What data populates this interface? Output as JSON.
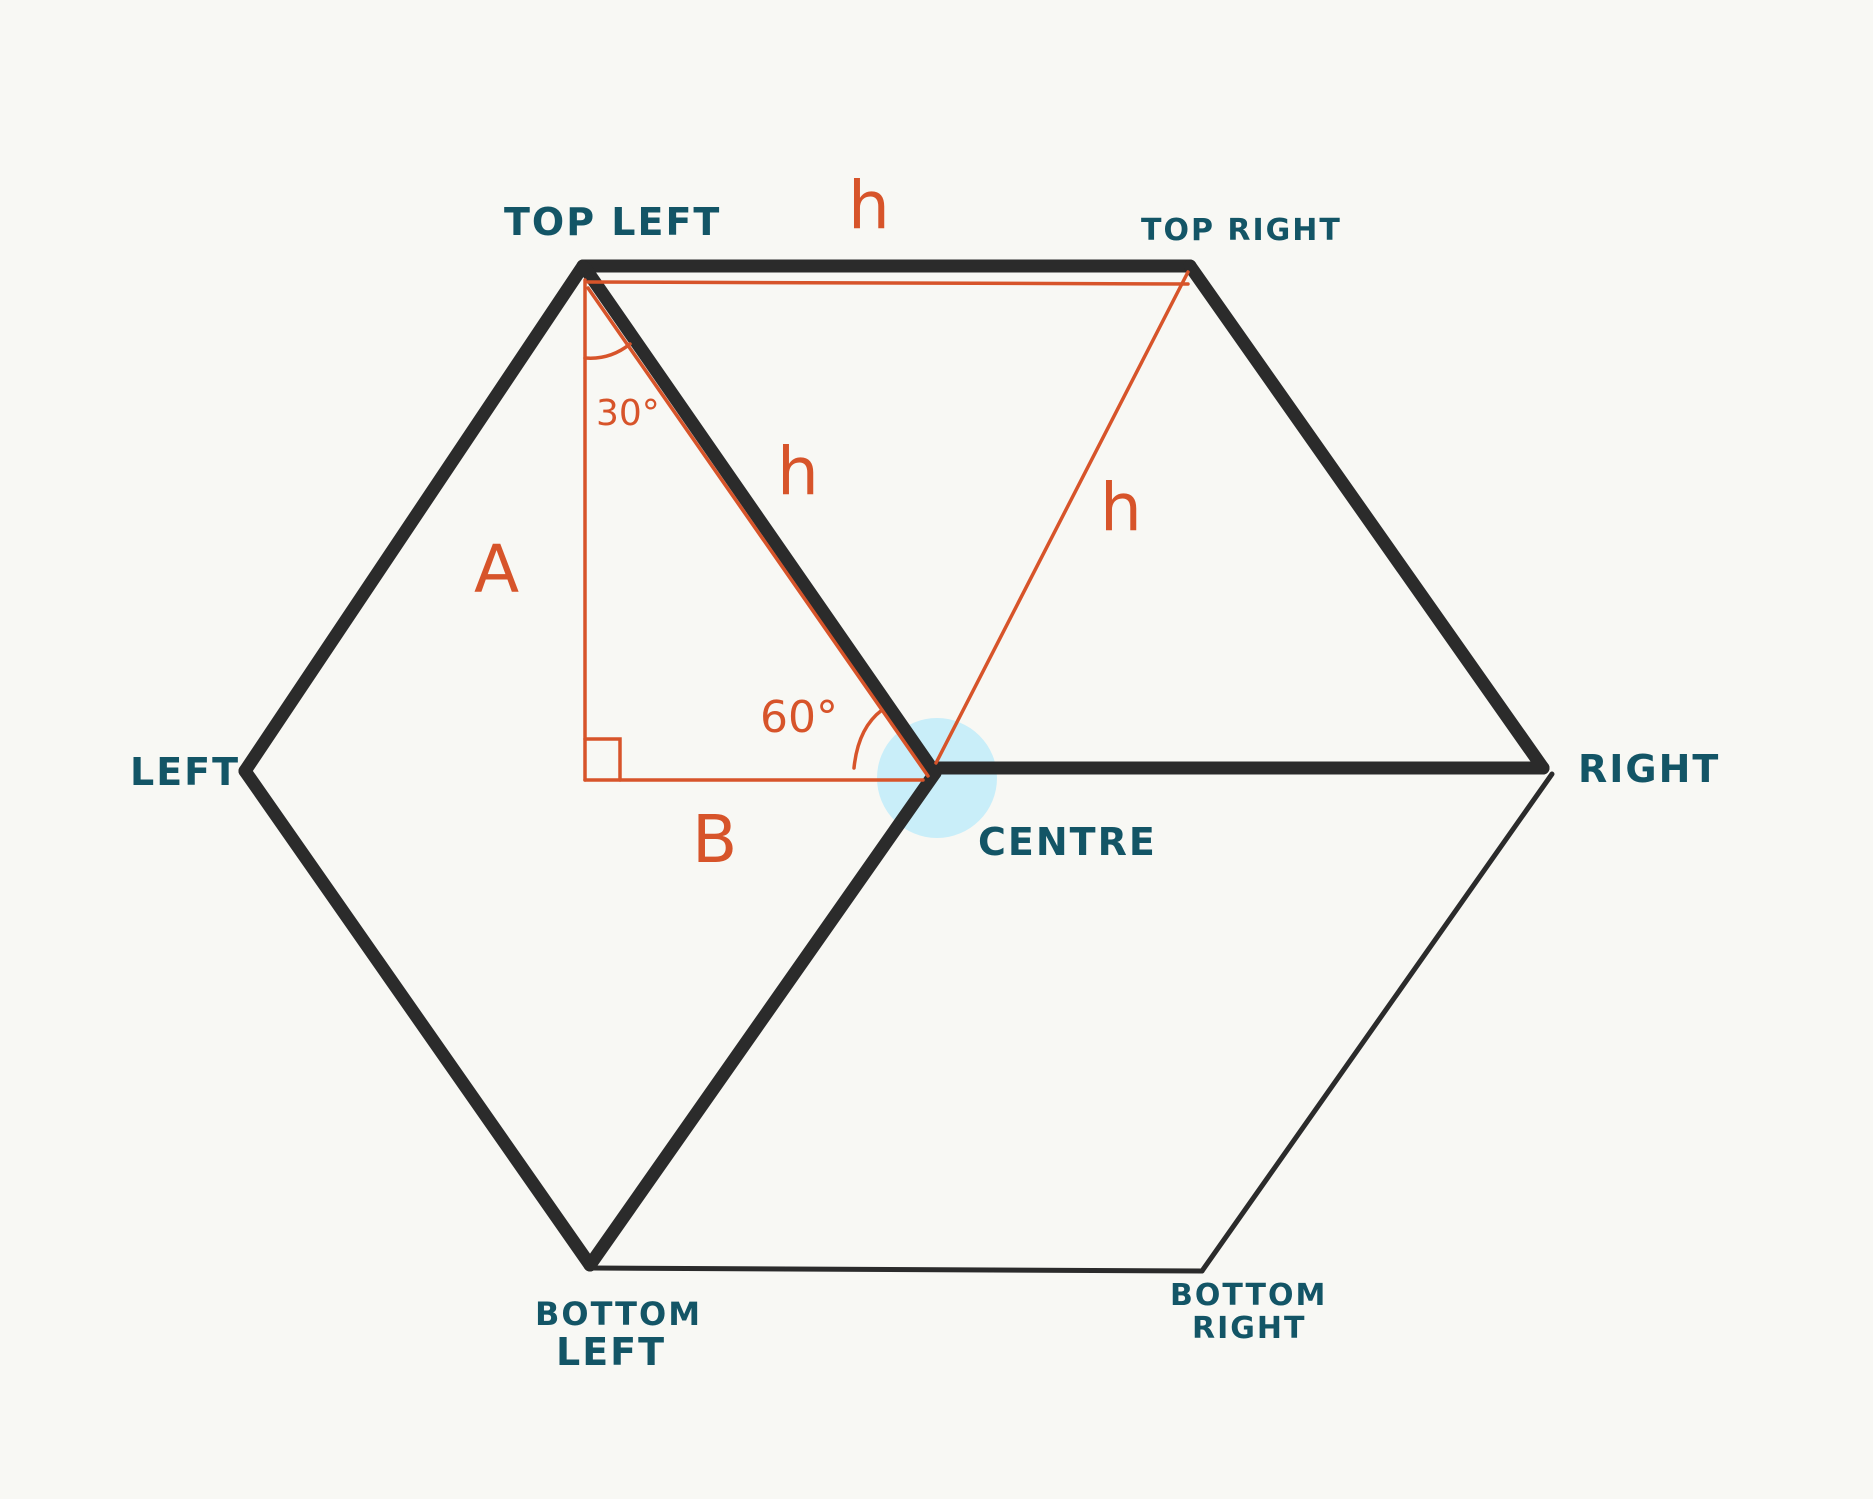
{
  "vertices": {
    "top_left": "TOP LEFT",
    "top_right": "TOP RIGHT",
    "left": "LEFT",
    "right": "RIGHT",
    "centre": "CENTRE",
    "bottom_left_1": "BOTTOM",
    "bottom_left_2": "LEFT",
    "bottom_right_1": "BOTTOM",
    "bottom_right_2": "RIGHT"
  },
  "measurements": {
    "h_top": "h",
    "h_diagonal": "h",
    "h_right": "h",
    "side_a": "A",
    "side_b": "B",
    "angle_30": "30°",
    "angle_60": "60°"
  },
  "colors": {
    "background": "#f8f8f4",
    "hexagon": "#2b2b2b",
    "construction": "#d7542a",
    "label": "#135566",
    "centre_highlight": "#c9eef9"
  }
}
